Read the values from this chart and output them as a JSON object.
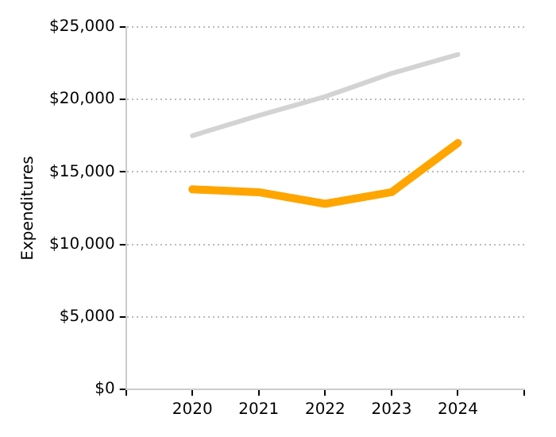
{
  "chart_data": {
    "type": "line",
    "ylabel": "Expenditures",
    "x": [
      2020,
      2021,
      2022,
      2023,
      2024
    ],
    "series": [
      {
        "color": "#d3d3d3",
        "values": [
          17500,
          18900,
          20200,
          21800,
          23100
        ]
      },
      {
        "color": "#ffa500",
        "values": [
          13800,
          13600,
          12800,
          13600,
          17000
        ]
      }
    ],
    "xlim": [
      2019,
      2025
    ],
    "xticks": [
      {
        "value": 2019,
        "label": null
      },
      2020,
      2021,
      2022,
      2023,
      2024,
      {
        "value": 2025,
        "label": null
      }
    ],
    "ylim": [
      0,
      25000
    ],
    "yticks": [
      {
        "value": 0,
        "label": "$0"
      },
      {
        "value": 5000,
        "label": "$5,000"
      },
      {
        "value": 10000,
        "label": "$10,000"
      },
      {
        "value": 15000,
        "label": "$15,000"
      },
      {
        "value": 20000,
        "label": "$20,000"
      },
      {
        "value": 25000,
        "label": "$25,000"
      }
    ],
    "grid": "y",
    "legend": false,
    "marker": "none"
  }
}
